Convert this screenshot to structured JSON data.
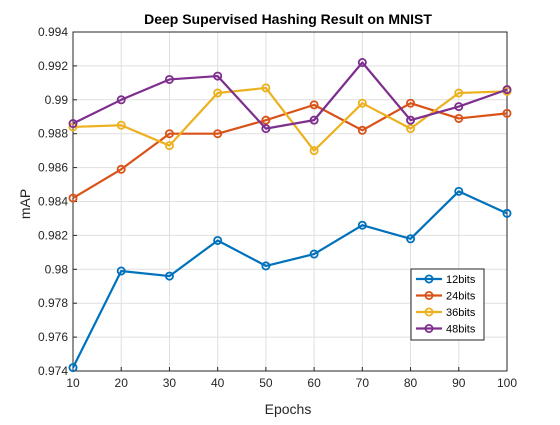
{
  "chart_data": {
    "type": "line",
    "title": "Deep Supervised Hashing Result on MNIST",
    "xlabel": "Epochs",
    "ylabel": "mAP",
    "x": [
      10,
      20,
      30,
      40,
      50,
      60,
      70,
      80,
      90,
      100
    ],
    "xlim": [
      10,
      100
    ],
    "ylim": [
      0.974,
      0.994
    ],
    "xticks": [
      10,
      20,
      30,
      40,
      50,
      60,
      70,
      80,
      90,
      100
    ],
    "xtick_labels": [
      "10",
      "20",
      "30",
      "40",
      "50",
      "60",
      "70",
      "80",
      "90",
      "100"
    ],
    "yticks": [
      0.974,
      0.976,
      0.978,
      0.98,
      0.982,
      0.984,
      0.986,
      0.988,
      0.99,
      0.992,
      0.994
    ],
    "ytick_labels": [
      "0.974",
      "0.976",
      "0.978",
      "0.98",
      "0.982",
      "0.984",
      "0.986",
      "0.988",
      "0.99",
      "0.992",
      "0.994"
    ],
    "grid": true,
    "legend_position": "bottom-right",
    "series": [
      {
        "name": "12bits",
        "color": "#0072bd",
        "values": [
          0.9742,
          0.9799,
          0.9796,
          0.9817,
          0.9802,
          0.9809,
          0.9826,
          0.9818,
          0.9846,
          0.9833
        ]
      },
      {
        "name": "24bits",
        "color": "#d95319",
        "values": [
          0.9842,
          0.9859,
          0.988,
          0.988,
          0.9888,
          0.9897,
          0.9882,
          0.9898,
          0.9889,
          0.9892
        ]
      },
      {
        "name": "36bits",
        "color": "#edb120",
        "values": [
          0.9884,
          0.9885,
          0.9873,
          0.9904,
          0.9907,
          0.987,
          0.9898,
          0.9883,
          0.9904,
          0.9905
        ]
      },
      {
        "name": "48bits",
        "color": "#7e2f8e",
        "values": [
          0.9886,
          0.99,
          0.9912,
          0.9914,
          0.9883,
          0.9888,
          0.9922,
          0.9888,
          0.9896,
          0.9906
        ]
      }
    ]
  }
}
